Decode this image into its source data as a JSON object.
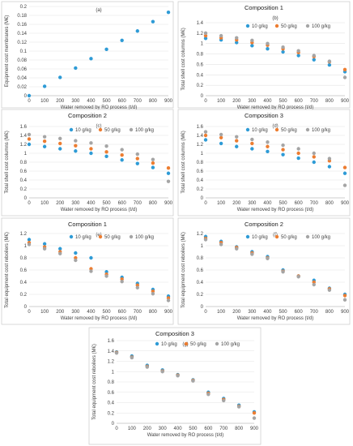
{
  "colors": {
    "c10": "#2E9BD6",
    "c50": "#ED7D31",
    "c100": "#A5A5A5"
  },
  "chart_data": [
    {
      "type": "scatter",
      "tag": "(a)",
      "title": "",
      "xlabel": "Water removed by RO process (t/d)",
      "ylabel": "Equipment cost membranes (M€)",
      "x": [
        0,
        100,
        200,
        300,
        400,
        500,
        600,
        700,
        800,
        900
      ],
      "ylim": [
        0,
        0.2
      ],
      "yticks": [
        0,
        0.02,
        0.04,
        0.06,
        0.08,
        0.1,
        0.12,
        0.14,
        0.16,
        0.18,
        0.2
      ],
      "grid": true,
      "legend": "none",
      "series": [
        {
          "name": "",
          "color": "#2E9BD6",
          "values": [
            0,
            0.021,
            0.041,
            0.062,
            0.083,
            0.104,
            0.124,
            0.145,
            0.166,
            0.187
          ]
        }
      ]
    },
    {
      "type": "scatter",
      "tag": "(b)",
      "title": "Composition 1",
      "xlabel": "Water removed by RO process (t/d)",
      "ylabel": "Total shell cost columns (M€)",
      "x": [
        0,
        100,
        200,
        300,
        400,
        500,
        600,
        700,
        800,
        900
      ],
      "ylim": [
        0,
        1.4
      ],
      "yticks": [
        0,
        0.2,
        0.4,
        0.6,
        0.8,
        1,
        1.2,
        1.4
      ],
      "grid": true,
      "legend": "top-right",
      "series": [
        {
          "name": "10 g/kg",
          "color": "#2E9BD6",
          "values": [
            1.1,
            1.07,
            1.02,
            0.96,
            0.9,
            0.84,
            0.77,
            0.69,
            0.59,
            0.46
          ]
        },
        {
          "name": "50 g/kg",
          "color": "#ED7D31",
          "values": [
            1.15,
            1.11,
            1.07,
            1.02,
            0.97,
            0.9,
            0.83,
            0.75,
            0.65,
            0.5
          ]
        },
        {
          "name": "100 g/kg",
          "color": "#A5A5A5",
          "values": [
            1.2,
            1.15,
            1.11,
            1.06,
            1.0,
            0.93,
            0.86,
            0.77,
            0.66,
            0.35
          ]
        }
      ]
    },
    {
      "type": "scatter",
      "tag": "(c)",
      "title": "Composition 2",
      "xlabel": "Water removed by RO process (t/d)",
      "ylabel": "Total shell cost columns (M€)",
      "x": [
        0,
        100,
        200,
        300,
        400,
        500,
        600,
        700,
        800,
        900
      ],
      "ylim": [
        0,
        1.6
      ],
      "yticks": [
        0,
        0.2,
        0.4,
        0.6,
        0.8,
        1,
        1.2,
        1.4,
        1.6
      ],
      "grid": true,
      "legend": "top-right",
      "series": [
        {
          "name": "10 g/kg",
          "color": "#2E9BD6",
          "values": [
            1.2,
            1.15,
            1.1,
            1.05,
            1.0,
            0.93,
            0.85,
            0.77,
            0.68,
            0.55
          ]
        },
        {
          "name": "50 g/kg",
          "color": "#ED7D31",
          "values": [
            1.32,
            1.27,
            1.22,
            1.17,
            1.1,
            1.03,
            0.96,
            0.88,
            0.78,
            0.67
          ]
        },
        {
          "name": "100 g/kg",
          "color": "#A5A5A5",
          "values": [
            1.42,
            1.37,
            1.33,
            1.28,
            1.23,
            1.16,
            1.08,
            0.98,
            0.86,
            0.37
          ]
        }
      ]
    },
    {
      "type": "scatter",
      "tag": "(d)",
      "title": "Composition 3",
      "xlabel": "Water removed by RO process (t/d)",
      "ylabel": "Total shell cost columns (M€)",
      "x": [
        0,
        100,
        200,
        300,
        400,
        500,
        600,
        700,
        800,
        900
      ],
      "ylim": [
        0,
        1.6
      ],
      "yticks": [
        0,
        0.2,
        0.4,
        0.6,
        0.8,
        1,
        1.2,
        1.4,
        1.6
      ],
      "grid": true,
      "legend": "top-right",
      "series": [
        {
          "name": "10 g/kg",
          "color": "#2E9BD6",
          "values": [
            1.3,
            1.22,
            1.15,
            1.1,
            1.04,
            0.97,
            0.89,
            0.8,
            0.7,
            0.55
          ]
        },
        {
          "name": "50 g/kg",
          "color": "#ED7D31",
          "values": [
            1.4,
            1.35,
            1.28,
            1.22,
            1.15,
            1.08,
            1.0,
            0.92,
            0.83,
            0.68
          ]
        },
        {
          "name": "100 g/kg",
          "color": "#A5A5A5",
          "values": [
            1.48,
            1.42,
            1.37,
            1.31,
            1.25,
            1.18,
            1.1,
            1.0,
            0.88,
            0.28
          ]
        }
      ]
    },
    {
      "type": "scatter",
      "tag": "(e)",
      "title": "Composition 1",
      "xlabel": "Water removed by RO process (t/d)",
      "ylabel": "Total equipment cost reboilers (M€)",
      "x": [
        0,
        100,
        200,
        300,
        400,
        500,
        600,
        700,
        800,
        900
      ],
      "ylim": [
        0,
        1.2
      ],
      "yticks": [
        0,
        0.2,
        0.4,
        0.6,
        0.8,
        1,
        1.2
      ],
      "grid": true,
      "legend": "top-right",
      "series": [
        {
          "name": "10 g/kg",
          "color": "#2E9BD6",
          "values": [
            1.1,
            1.03,
            0.95,
            0.88,
            0.8,
            0.57,
            0.48,
            0.38,
            0.28,
            0.17
          ]
        },
        {
          "name": "50 g/kg",
          "color": "#ED7D31",
          "values": [
            1.05,
            0.98,
            0.9,
            0.8,
            0.62,
            0.53,
            0.45,
            0.35,
            0.25,
            0.14
          ]
        },
        {
          "name": "100 g/kg",
          "color": "#A5A5A5",
          "values": [
            1.02,
            0.95,
            0.87,
            0.76,
            0.58,
            0.5,
            0.41,
            0.31,
            0.21,
            0.1
          ]
        }
      ]
    },
    {
      "type": "scatter",
      "tag": "(f)",
      "title": "Composition 2",
      "xlabel": "Water removed by RO process (t/d)",
      "ylabel": "Total equipment cost reboilers (M€)",
      "x": [
        0,
        100,
        200,
        300,
        400,
        500,
        600,
        700,
        800,
        900
      ],
      "ylim": [
        0,
        1.2
      ],
      "yticks": [
        0,
        0.2,
        0.4,
        0.6,
        0.8,
        1,
        1.2
      ],
      "grid": true,
      "legend": "top-right",
      "series": [
        {
          "name": "10 g/kg",
          "color": "#2E9BD6",
          "values": [
            1.15,
            1.07,
            0.98,
            0.9,
            0.82,
            0.6,
            0.5,
            0.43,
            0.3,
            0.2
          ]
        },
        {
          "name": "50 g/kg",
          "color": "#ED7D31",
          "values": [
            1.12,
            1.05,
            0.97,
            0.88,
            0.8,
            0.58,
            0.5,
            0.4,
            0.29,
            0.18
          ]
        },
        {
          "name": "100 g/kg",
          "color": "#A5A5A5",
          "values": [
            1.1,
            1.02,
            0.95,
            0.86,
            0.79,
            0.57,
            0.49,
            0.36,
            0.27,
            0.11
          ]
        }
      ]
    },
    {
      "type": "scatter",
      "tag": "(g)",
      "title": "Composition 3",
      "xlabel": "Water removed by RO process (t/d)",
      "ylabel": "Total equipment cost reboilers (M€)",
      "x": [
        0,
        100,
        200,
        300,
        400,
        500,
        600,
        700,
        800,
        900
      ],
      "ylim": [
        0,
        1.6
      ],
      "yticks": [
        0,
        0.2,
        0.4,
        0.6,
        0.8,
        1,
        1.2,
        1.4,
        1.6
      ],
      "grid": true,
      "legend": "top-right",
      "series": [
        {
          "name": "10 g/kg",
          "color": "#2E9BD6",
          "values": [
            1.38,
            1.3,
            1.12,
            1.03,
            0.94,
            0.84,
            0.6,
            0.48,
            0.35,
            0.22
          ]
        },
        {
          "name": "50 g/kg",
          "color": "#ED7D31",
          "values": [
            1.37,
            1.28,
            1.1,
            1.01,
            0.93,
            0.83,
            0.58,
            0.46,
            0.33,
            0.2
          ]
        },
        {
          "name": "100 g/kg",
          "color": "#A5A5A5",
          "values": [
            1.36,
            1.27,
            1.09,
            1.0,
            0.92,
            0.82,
            0.56,
            0.44,
            0.32,
            0.1
          ]
        }
      ]
    }
  ]
}
